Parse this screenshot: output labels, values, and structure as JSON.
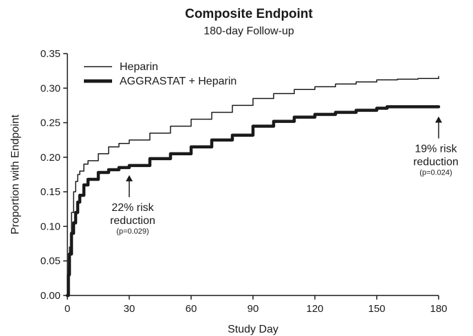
{
  "chart_data": {
    "type": "line",
    "title": "Composite Endpoint",
    "subtitle": "180-day Follow-up",
    "xlabel": "Study Day",
    "ylabel": "Proportion with Endpoint",
    "xlim": [
      0,
      180
    ],
    "ylim": [
      0,
      0.35
    ],
    "x_ticks": [
      "0",
      "30",
      "60",
      "90",
      "120",
      "150",
      "180"
    ],
    "y_ticks": [
      "0.00",
      "0.05",
      "0.10",
      "0.15",
      "0.20",
      "0.25",
      "0.30",
      "0.35"
    ],
    "grid": false,
    "legend_position": "top-left",
    "colors": {
      "line": "#1a1a1a",
      "axis": "#1a1a1a"
    },
    "series": [
      {
        "name": "Heparin",
        "style": "thin",
        "x": [
          0,
          0.5,
          1,
          2,
          3,
          4,
          5,
          6,
          8,
          10,
          15,
          20,
          25,
          30,
          40,
          50,
          60,
          70,
          80,
          90,
          100,
          110,
          120,
          130,
          140,
          150,
          160,
          170,
          180
        ],
        "y": [
          0.0,
          0.04,
          0.07,
          0.12,
          0.15,
          0.165,
          0.175,
          0.18,
          0.19,
          0.195,
          0.205,
          0.215,
          0.22,
          0.225,
          0.235,
          0.245,
          0.255,
          0.265,
          0.275,
          0.285,
          0.292,
          0.298,
          0.302,
          0.306,
          0.309,
          0.312,
          0.313,
          0.314,
          0.317
        ]
      },
      {
        "name": "AGGRASTAT + Heparin",
        "style": "thick",
        "x": [
          0,
          0.5,
          1,
          2,
          3,
          4,
          5,
          6,
          8,
          10,
          15,
          20,
          25,
          30,
          40,
          50,
          60,
          70,
          80,
          90,
          100,
          110,
          120,
          130,
          140,
          150,
          155,
          160,
          170,
          180
        ],
        "y": [
          0.0,
          0.03,
          0.06,
          0.09,
          0.105,
          0.12,
          0.135,
          0.145,
          0.16,
          0.168,
          0.178,
          0.182,
          0.185,
          0.188,
          0.198,
          0.205,
          0.215,
          0.225,
          0.232,
          0.245,
          0.252,
          0.258,
          0.262,
          0.265,
          0.268,
          0.271,
          0.273,
          0.273,
          0.273,
          0.273
        ]
      }
    ],
    "annotations": [
      {
        "x": 30,
        "y": 0.188,
        "lines": [
          "22% risk",
          "reduction"
        ],
        "note": "(p=0.029)"
      },
      {
        "x": 180,
        "y": 0.273,
        "lines": [
          "19% risk",
          "reduction"
        ],
        "note": "(p=0.024)"
      }
    ]
  }
}
